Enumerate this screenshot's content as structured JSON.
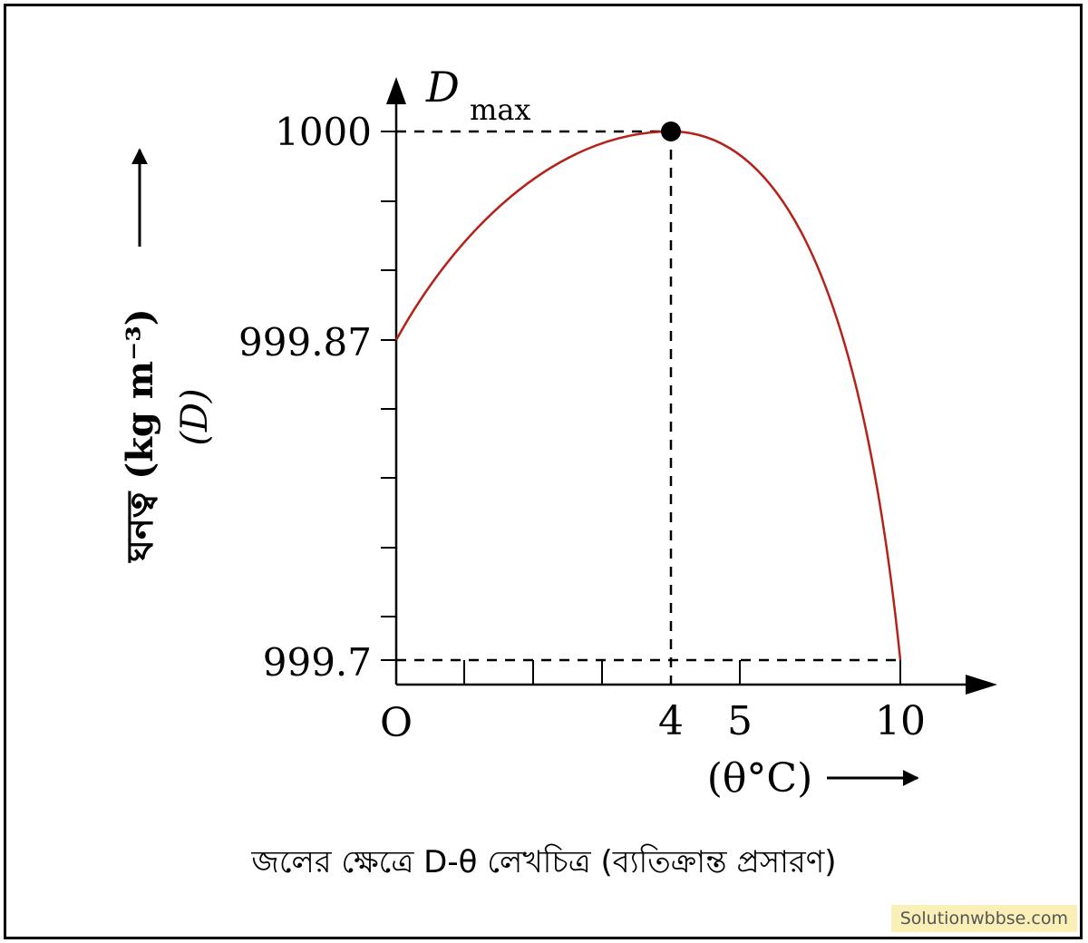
{
  "chart_data": {
    "type": "line",
    "x": [
      0,
      4,
      10
    ],
    "y": [
      999.87,
      1000,
      999.7
    ],
    "xticks": [
      "O",
      "4",
      "5",
      "10"
    ],
    "yticks": [
      "1000",
      "999.87",
      "999.7"
    ],
    "xlabel": "(θ°C)",
    "ylabel_main": "ঘনত্ব (kg m⁻³)",
    "ylabel_sub": "(D)",
    "peak_label": "D",
    "peak_label_sub": "max",
    "peak": {
      "x": 4,
      "y": 1000
    },
    "series_color": "#b5221a",
    "grid": false
  },
  "caption": "জলের ক্ষেত্রে D-θ লেখচিত্র (ব্যতিক্রান্ত প্রসারণ)",
  "watermark": "Solutionwbbse.com"
}
